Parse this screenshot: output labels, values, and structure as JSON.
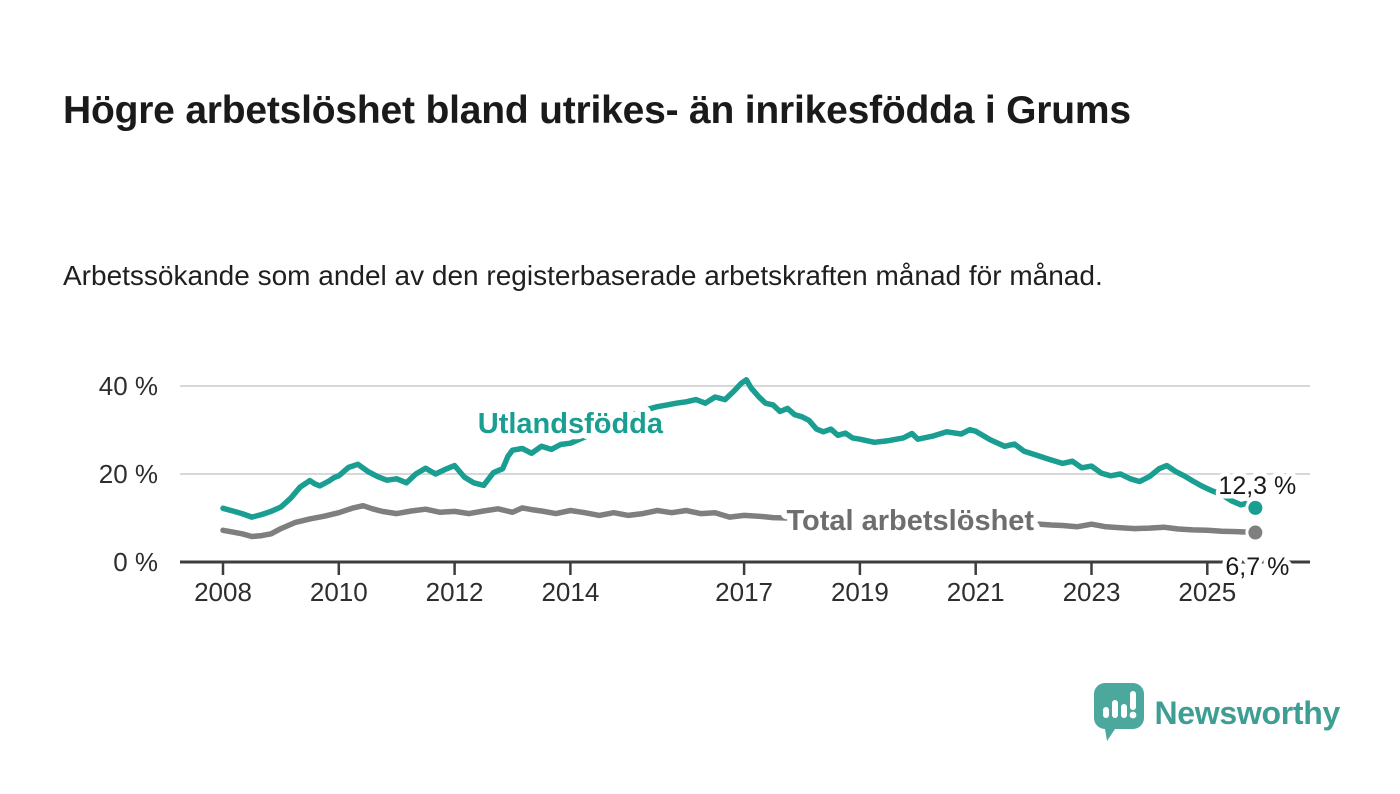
{
  "page": {
    "title": "Högre arbetslöshet bland utrikes- än inrikesfödda i Grums",
    "subtitle": "Arbetssökande som andel av den registerbaserade arbetskraften månad för månad."
  },
  "branding": {
    "wordmark": "Newsworthy",
    "icon": "newsworthy-speech-bubble-bar-chart-icon",
    "icon_color": "#4ca89d",
    "wordmark_color": "#3f9e94"
  },
  "colors": {
    "background": "#ffffff",
    "title_text": "#1a1a1a",
    "axis": "#3d3d3d",
    "gridline": "#d8d8d8",
    "tick_label": "#2e2e2e",
    "end_label_text": "#1a1a1a",
    "teal_accent": "#1a9e91",
    "gray_accent": "#7f7f7f"
  },
  "chart_data": {
    "type": "line",
    "unit": "%",
    "title": "Högre arbetslöshet bland utrikes- än inrikesfödda i Grums",
    "xlabel": "",
    "ylabel": "",
    "x_axis": {
      "ticks": [
        2008,
        2010,
        2012,
        2014,
        2017,
        2019,
        2021,
        2023,
        2025
      ],
      "range": [
        2007.25,
        2026.8
      ]
    },
    "y_axis": {
      "ticks": [
        {
          "value": 0,
          "label": "0 %"
        },
        {
          "value": 20,
          "label": "20 %"
        },
        {
          "value": 40,
          "label": "40 %"
        }
      ],
      "range": [
        0,
        44
      ],
      "grid": true
    },
    "legend_position": "inline-labels",
    "series": [
      {
        "name": "Utlandsfödda",
        "color": "#1a9e91",
        "label_color": "#1a9e91",
        "end_label": "12,3 %",
        "end_value": 12.3,
        "label_anchor": {
          "x": 2014.0,
          "y": 31.4
        },
        "points": [
          [
            2008.0,
            12.2
          ],
          [
            2008.17,
            11.6
          ],
          [
            2008.33,
            11.0
          ],
          [
            2008.5,
            10.2
          ],
          [
            2008.67,
            10.8
          ],
          [
            2008.83,
            11.5
          ],
          [
            2009.0,
            12.5
          ],
          [
            2009.17,
            14.5
          ],
          [
            2009.33,
            17.0
          ],
          [
            2009.5,
            18.5
          ],
          [
            2009.58,
            17.8
          ],
          [
            2009.67,
            17.3
          ],
          [
            2009.83,
            18.4
          ],
          [
            2009.92,
            19.2
          ],
          [
            2010.0,
            19.6
          ],
          [
            2010.17,
            21.5
          ],
          [
            2010.33,
            22.2
          ],
          [
            2010.5,
            20.6
          ],
          [
            2010.67,
            19.4
          ],
          [
            2010.83,
            18.6
          ],
          [
            2011.0,
            18.9
          ],
          [
            2011.17,
            18.0
          ],
          [
            2011.33,
            20.0
          ],
          [
            2011.5,
            21.3
          ],
          [
            2011.67,
            20.0
          ],
          [
            2011.83,
            21.0
          ],
          [
            2012.0,
            21.9
          ],
          [
            2012.17,
            19.3
          ],
          [
            2012.33,
            18.0
          ],
          [
            2012.5,
            17.4
          ],
          [
            2012.67,
            20.3
          ],
          [
            2012.83,
            21.2
          ],
          [
            2012.92,
            24.0
          ],
          [
            2013.0,
            25.4
          ],
          [
            2013.17,
            25.8
          ],
          [
            2013.33,
            24.7
          ],
          [
            2013.5,
            26.3
          ],
          [
            2013.67,
            25.6
          ],
          [
            2013.83,
            26.7
          ],
          [
            2014.0,
            27.0
          ],
          [
            2014.25,
            28.4
          ],
          [
            2014.5,
            30.0
          ],
          [
            2014.75,
            31.6
          ],
          [
            2015.0,
            33.0
          ],
          [
            2015.25,
            34.4
          ],
          [
            2015.5,
            35.3
          ],
          [
            2015.67,
            35.7
          ],
          [
            2015.83,
            36.1
          ],
          [
            2016.0,
            36.4
          ],
          [
            2016.17,
            36.9
          ],
          [
            2016.33,
            36.1
          ],
          [
            2016.5,
            37.5
          ],
          [
            2016.67,
            36.9
          ],
          [
            2016.83,
            38.9
          ],
          [
            2016.95,
            40.6
          ],
          [
            2017.04,
            41.4
          ],
          [
            2017.12,
            39.6
          ],
          [
            2017.25,
            37.6
          ],
          [
            2017.37,
            36.1
          ],
          [
            2017.5,
            35.7
          ],
          [
            2017.62,
            34.2
          ],
          [
            2017.75,
            34.9
          ],
          [
            2017.87,
            33.5
          ],
          [
            2018.0,
            33.0
          ],
          [
            2018.12,
            32.2
          ],
          [
            2018.25,
            30.2
          ],
          [
            2018.37,
            29.6
          ],
          [
            2018.5,
            30.2
          ],
          [
            2018.62,
            28.8
          ],
          [
            2018.75,
            29.3
          ],
          [
            2018.87,
            28.2
          ],
          [
            2019.0,
            27.9
          ],
          [
            2019.25,
            27.2
          ],
          [
            2019.5,
            27.6
          ],
          [
            2019.75,
            28.2
          ],
          [
            2019.9,
            29.2
          ],
          [
            2020.0,
            27.9
          ],
          [
            2020.25,
            28.6
          ],
          [
            2020.5,
            29.6
          ],
          [
            2020.75,
            29.1
          ],
          [
            2020.9,
            30.1
          ],
          [
            2021.0,
            29.7
          ],
          [
            2021.25,
            27.8
          ],
          [
            2021.5,
            26.3
          ],
          [
            2021.67,
            26.8
          ],
          [
            2021.83,
            25.2
          ],
          [
            2022.0,
            24.5
          ],
          [
            2022.25,
            23.4
          ],
          [
            2022.5,
            22.4
          ],
          [
            2022.67,
            22.9
          ],
          [
            2022.83,
            21.4
          ],
          [
            2023.0,
            21.8
          ],
          [
            2023.17,
            20.2
          ],
          [
            2023.33,
            19.6
          ],
          [
            2023.5,
            20.0
          ],
          [
            2023.67,
            18.9
          ],
          [
            2023.83,
            18.3
          ],
          [
            2024.0,
            19.4
          ],
          [
            2024.17,
            21.2
          ],
          [
            2024.3,
            21.9
          ],
          [
            2024.45,
            20.6
          ],
          [
            2024.6,
            19.6
          ],
          [
            2024.75,
            18.4
          ],
          [
            2024.9,
            17.3
          ],
          [
            2025.08,
            16.2
          ],
          [
            2025.25,
            15.3
          ],
          [
            2025.42,
            13.9
          ],
          [
            2025.58,
            13.0
          ],
          [
            2025.7,
            13.4
          ],
          [
            2025.83,
            12.3
          ]
        ]
      },
      {
        "name": "Total arbetslöshet",
        "color": "#7f7f7f",
        "label_color": "#6e6e6e",
        "end_label": "6,7 %",
        "end_value": 6.7,
        "label_anchor": {
          "x": 2019.87,
          "y": 9.3
        },
        "points": [
          [
            2008.0,
            7.2
          ],
          [
            2008.17,
            6.8
          ],
          [
            2008.33,
            6.4
          ],
          [
            2008.5,
            5.8
          ],
          [
            2008.67,
            6.0
          ],
          [
            2008.83,
            6.4
          ],
          [
            2009.0,
            7.6
          ],
          [
            2009.25,
            9.0
          ],
          [
            2009.5,
            9.8
          ],
          [
            2009.75,
            10.4
          ],
          [
            2010.0,
            11.2
          ],
          [
            2010.25,
            12.3
          ],
          [
            2010.42,
            12.8
          ],
          [
            2010.58,
            12.1
          ],
          [
            2010.75,
            11.5
          ],
          [
            2011.0,
            11.0
          ],
          [
            2011.25,
            11.6
          ],
          [
            2011.5,
            12.0
          ],
          [
            2011.75,
            11.3
          ],
          [
            2012.0,
            11.5
          ],
          [
            2012.25,
            11.0
          ],
          [
            2012.5,
            11.6
          ],
          [
            2012.75,
            12.1
          ],
          [
            2013.0,
            11.3
          ],
          [
            2013.17,
            12.3
          ],
          [
            2013.33,
            11.9
          ],
          [
            2013.5,
            11.6
          ],
          [
            2013.75,
            11.0
          ],
          [
            2014.0,
            11.7
          ],
          [
            2014.25,
            11.2
          ],
          [
            2014.5,
            10.6
          ],
          [
            2014.75,
            11.2
          ],
          [
            2015.0,
            10.6
          ],
          [
            2015.25,
            11.0
          ],
          [
            2015.5,
            11.7
          ],
          [
            2015.75,
            11.2
          ],
          [
            2016.0,
            11.7
          ],
          [
            2016.25,
            11.0
          ],
          [
            2016.5,
            11.2
          ],
          [
            2016.75,
            10.2
          ],
          [
            2017.0,
            10.6
          ],
          [
            2017.25,
            10.4
          ],
          [
            2017.5,
            10.1
          ],
          [
            2017.75,
            10.0
          ],
          [
            2018.0,
            10.0
          ],
          [
            2018.5,
            9.7
          ],
          [
            2019.0,
            9.5
          ],
          [
            2019.5,
            9.4
          ],
          [
            2020.0,
            9.6
          ],
          [
            2020.5,
            9.5
          ],
          [
            2021.0,
            9.3
          ],
          [
            2021.5,
            9.0
          ],
          [
            2022.0,
            8.7
          ],
          [
            2022.3,
            8.4
          ],
          [
            2022.5,
            8.3
          ],
          [
            2022.75,
            8.0
          ],
          [
            2023.0,
            8.6
          ],
          [
            2023.25,
            8.0
          ],
          [
            2023.5,
            7.8
          ],
          [
            2023.75,
            7.6
          ],
          [
            2024.0,
            7.7
          ],
          [
            2024.25,
            7.9
          ],
          [
            2024.5,
            7.5
          ],
          [
            2024.75,
            7.3
          ],
          [
            2025.0,
            7.2
          ],
          [
            2025.25,
            7.0
          ],
          [
            2025.5,
            6.9
          ],
          [
            2025.7,
            6.8
          ],
          [
            2025.83,
            6.7
          ]
        ]
      }
    ]
  }
}
